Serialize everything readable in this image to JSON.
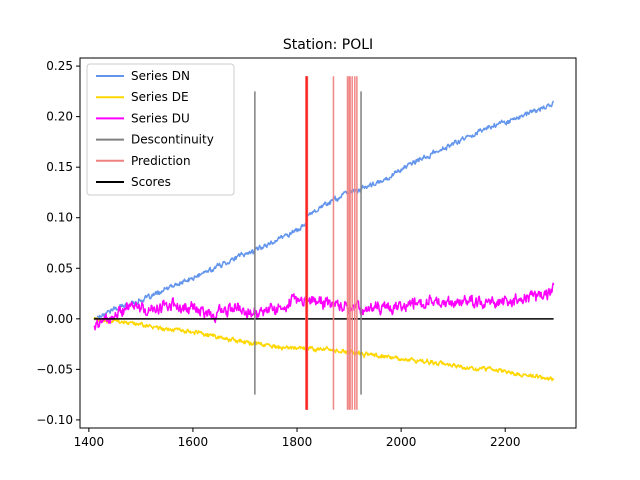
{
  "chart_data": {
    "type": "line",
    "title": "Station: POLI",
    "xlabel": "",
    "ylabel": "",
    "xlim": [
      1383,
      2336
    ],
    "ylim": [
      -0.108,
      0.258
    ],
    "x_ticks": [
      1400,
      1600,
      1800,
      2000,
      2200
    ],
    "y_ticks": [
      -0.1,
      -0.05,
      0.0,
      0.05,
      0.1,
      0.15,
      0.2,
      0.25
    ],
    "x_tick_labels": [
      "1400",
      "1600",
      "1800",
      "2000",
      "2200"
    ],
    "y_tick_labels": [
      "−0.10",
      "−0.05",
      "0.00",
      "0.05",
      "0.10",
      "0.15",
      "0.20",
      "0.25"
    ],
    "grid": false,
    "legend_position": "top-left",
    "legend": [
      {
        "label": "Series DN",
        "color": "#6495ED",
        "kind": "line"
      },
      {
        "label": "Series DE",
        "color": "#FFD700",
        "kind": "line"
      },
      {
        "label": "Series DU",
        "color": "#FF00FF",
        "kind": "line"
      },
      {
        "label": "Descontinuity",
        "color": "#808080",
        "kind": "line"
      },
      {
        "label": "Prediction",
        "color": "#F08080",
        "kind": "line"
      },
      {
        "label": "Scores",
        "color": "#000000",
        "kind": "line"
      }
    ],
    "series": [
      {
        "name": "Series DN",
        "color": "#6495ED",
        "x": [
          1410,
          1440,
          1480,
          1520,
          1560,
          1600,
          1640,
          1680,
          1720,
          1760,
          1800,
          1817,
          1820,
          1860,
          1900,
          1920,
          1960,
          2000,
          2040,
          2080,
          2120,
          2160,
          2200,
          2240,
          2280,
          2293
        ],
        "y": [
          0.0,
          0.008,
          0.015,
          0.022,
          0.032,
          0.04,
          0.05,
          0.06,
          0.068,
          0.078,
          0.088,
          0.093,
          0.103,
          0.115,
          0.125,
          0.128,
          0.135,
          0.148,
          0.158,
          0.168,
          0.178,
          0.188,
          0.195,
          0.202,
          0.21,
          0.213
        ],
        "noise": 0.0025
      },
      {
        "name": "Series DE",
        "color": "#FFD700",
        "x": [
          1410,
          1450,
          1500,
          1550,
          1600,
          1650,
          1700,
          1750,
          1800,
          1850,
          1900,
          1950,
          2000,
          2050,
          2100,
          2150,
          2200,
          2250,
          2293
        ],
        "y": [
          0.0,
          -0.003,
          -0.006,
          -0.01,
          -0.014,
          -0.018,
          -0.023,
          -0.027,
          -0.03,
          -0.03,
          -0.033,
          -0.036,
          -0.04,
          -0.043,
          -0.046,
          -0.049,
          -0.052,
          -0.056,
          -0.06
        ],
        "noise": 0.0022
      },
      {
        "name": "Series DU",
        "color": "#FF00FF",
        "x": [
          1410,
          1440,
          1480,
          1520,
          1560,
          1600,
          1640,
          1680,
          1720,
          1760,
          1800,
          1840,
          1880,
          1920,
          1960,
          2000,
          2040,
          2080,
          2120,
          2160,
          2200,
          2240,
          2293
        ],
        "y": [
          -0.005,
          0.0,
          0.012,
          0.008,
          0.014,
          0.01,
          0.004,
          0.012,
          0.006,
          0.012,
          0.02,
          0.016,
          0.014,
          0.01,
          0.012,
          0.012,
          0.016,
          0.014,
          0.018,
          0.016,
          0.018,
          0.02,
          0.028
        ],
        "noise": 0.006
      }
    ],
    "scores": {
      "name": "Scores",
      "color": "#000000",
      "x": [
        1410,
        2293
      ],
      "y": [
        0.0,
        0.0
      ]
    },
    "discontinuities": {
      "name": "Descontinuity",
      "color": "#808080",
      "x": [
        1719,
        1819,
        1923
      ],
      "ymin": -0.075,
      "ymax": 0.225
    },
    "predictions": {
      "name": "Prediction",
      "color": "#F08080",
      "x": [
        1817,
        1818,
        1819,
        1820,
        1870,
        1897,
        1900,
        1902,
        1906,
        1911,
        1915
      ],
      "ymin": -0.09,
      "ymax": 0.24
    }
  }
}
